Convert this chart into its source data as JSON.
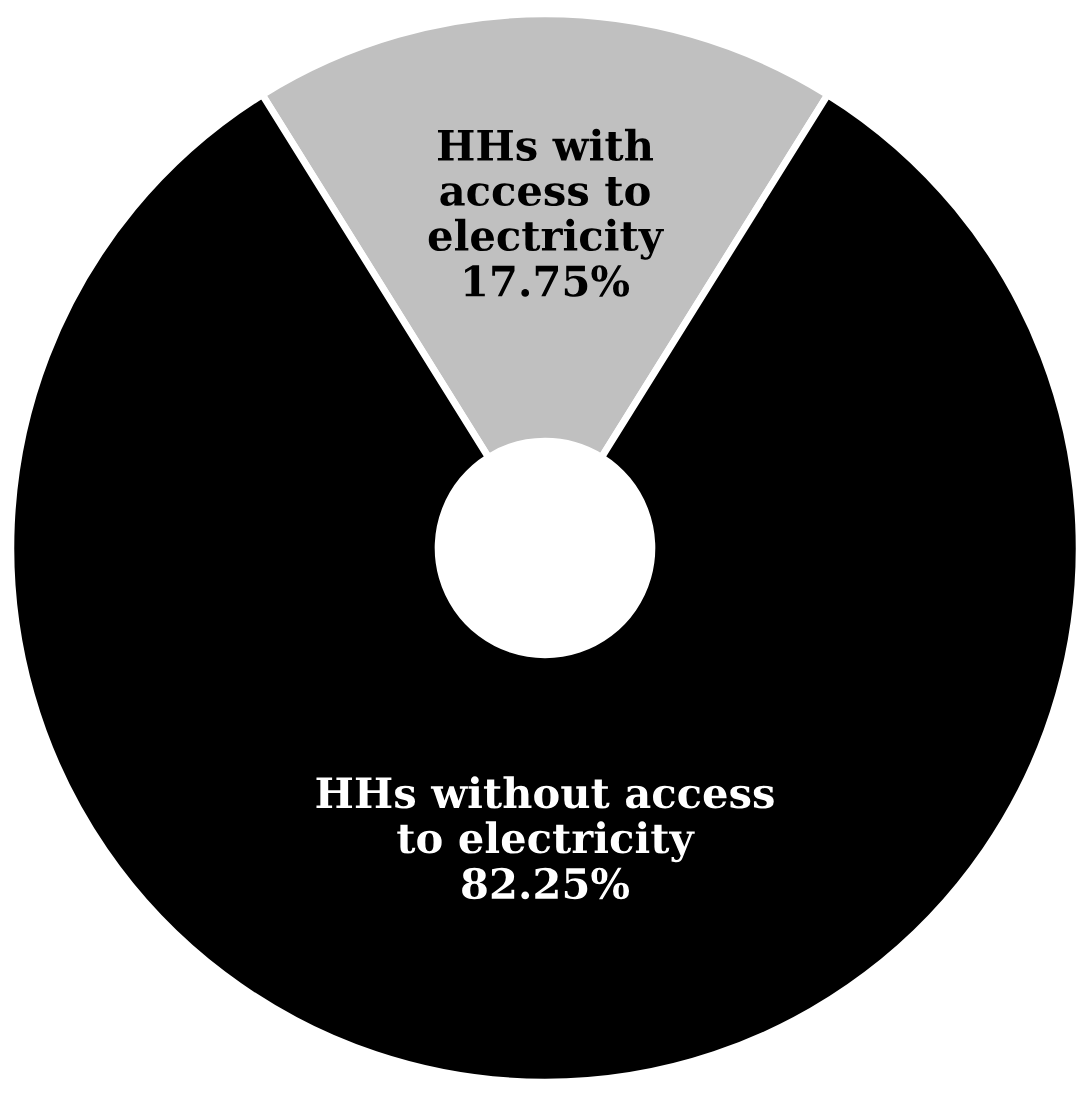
{
  "chart_data": {
    "type": "donut",
    "categories": [
      "HHs with access to electricity",
      "HHs without access to electricity"
    ],
    "values": [
      17.75,
      82.25
    ],
    "colors": [
      "#c0c0c0",
      "#000000"
    ],
    "value_labels": [
      "17.75%",
      "82.25%"
    ],
    "legend": false
  }
}
